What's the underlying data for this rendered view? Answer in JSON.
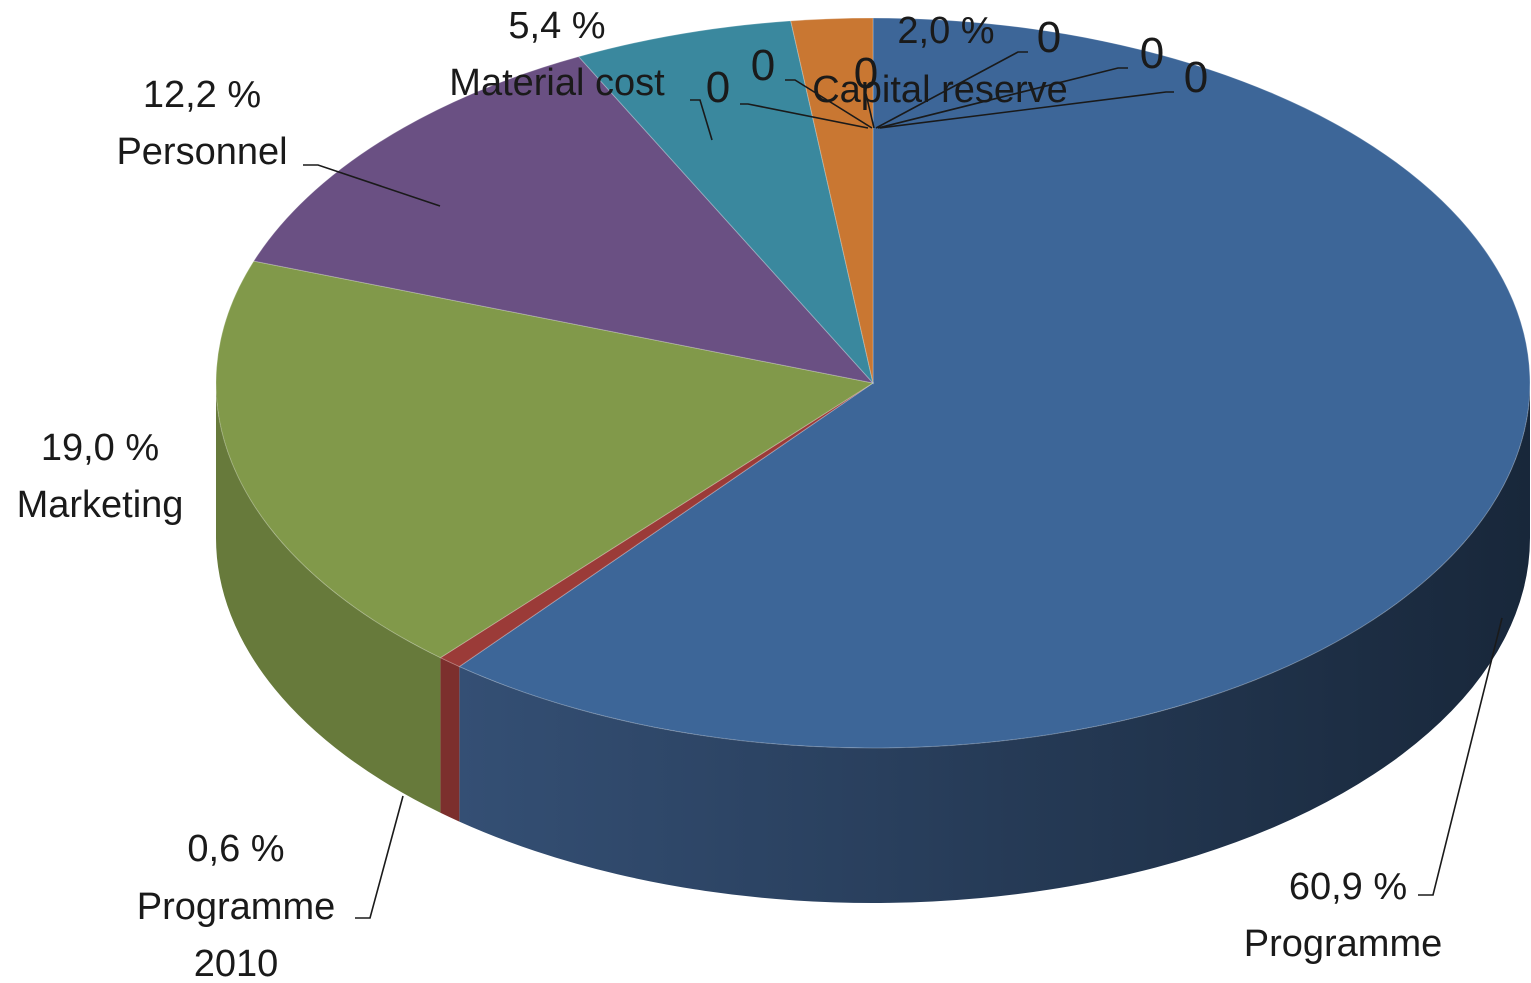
{
  "chart_data": {
    "type": "pie",
    "style": "3d",
    "legend": "none",
    "slices": [
      {
        "name": "Programme",
        "value": 60.9,
        "label_value": "60,9 %",
        "color": "#3d6698"
      },
      {
        "name": "Programme 2010",
        "label_name_lines": [
          "Programme",
          "2010"
        ],
        "value": 0.6,
        "label_value": "0,6 %",
        "color": "#9b3b38"
      },
      {
        "name": "Marketing",
        "value": 19.0,
        "label_value": "19,0 %",
        "color": "#81994a"
      },
      {
        "name": "Personnel",
        "value": 12.2,
        "label_value": "12,2 %",
        "color": "#6a5083"
      },
      {
        "name": "Material cost",
        "value": 5.4,
        "label_value": "5,4 %",
        "color": "#3a889e"
      },
      {
        "name": "Capital reserve",
        "value": 2.0,
        "label_value": "2,0 %",
        "color": "#c97732"
      }
    ],
    "zero_labels": [
      "0",
      "0",
      "0",
      "0",
      "0",
      "0"
    ]
  }
}
